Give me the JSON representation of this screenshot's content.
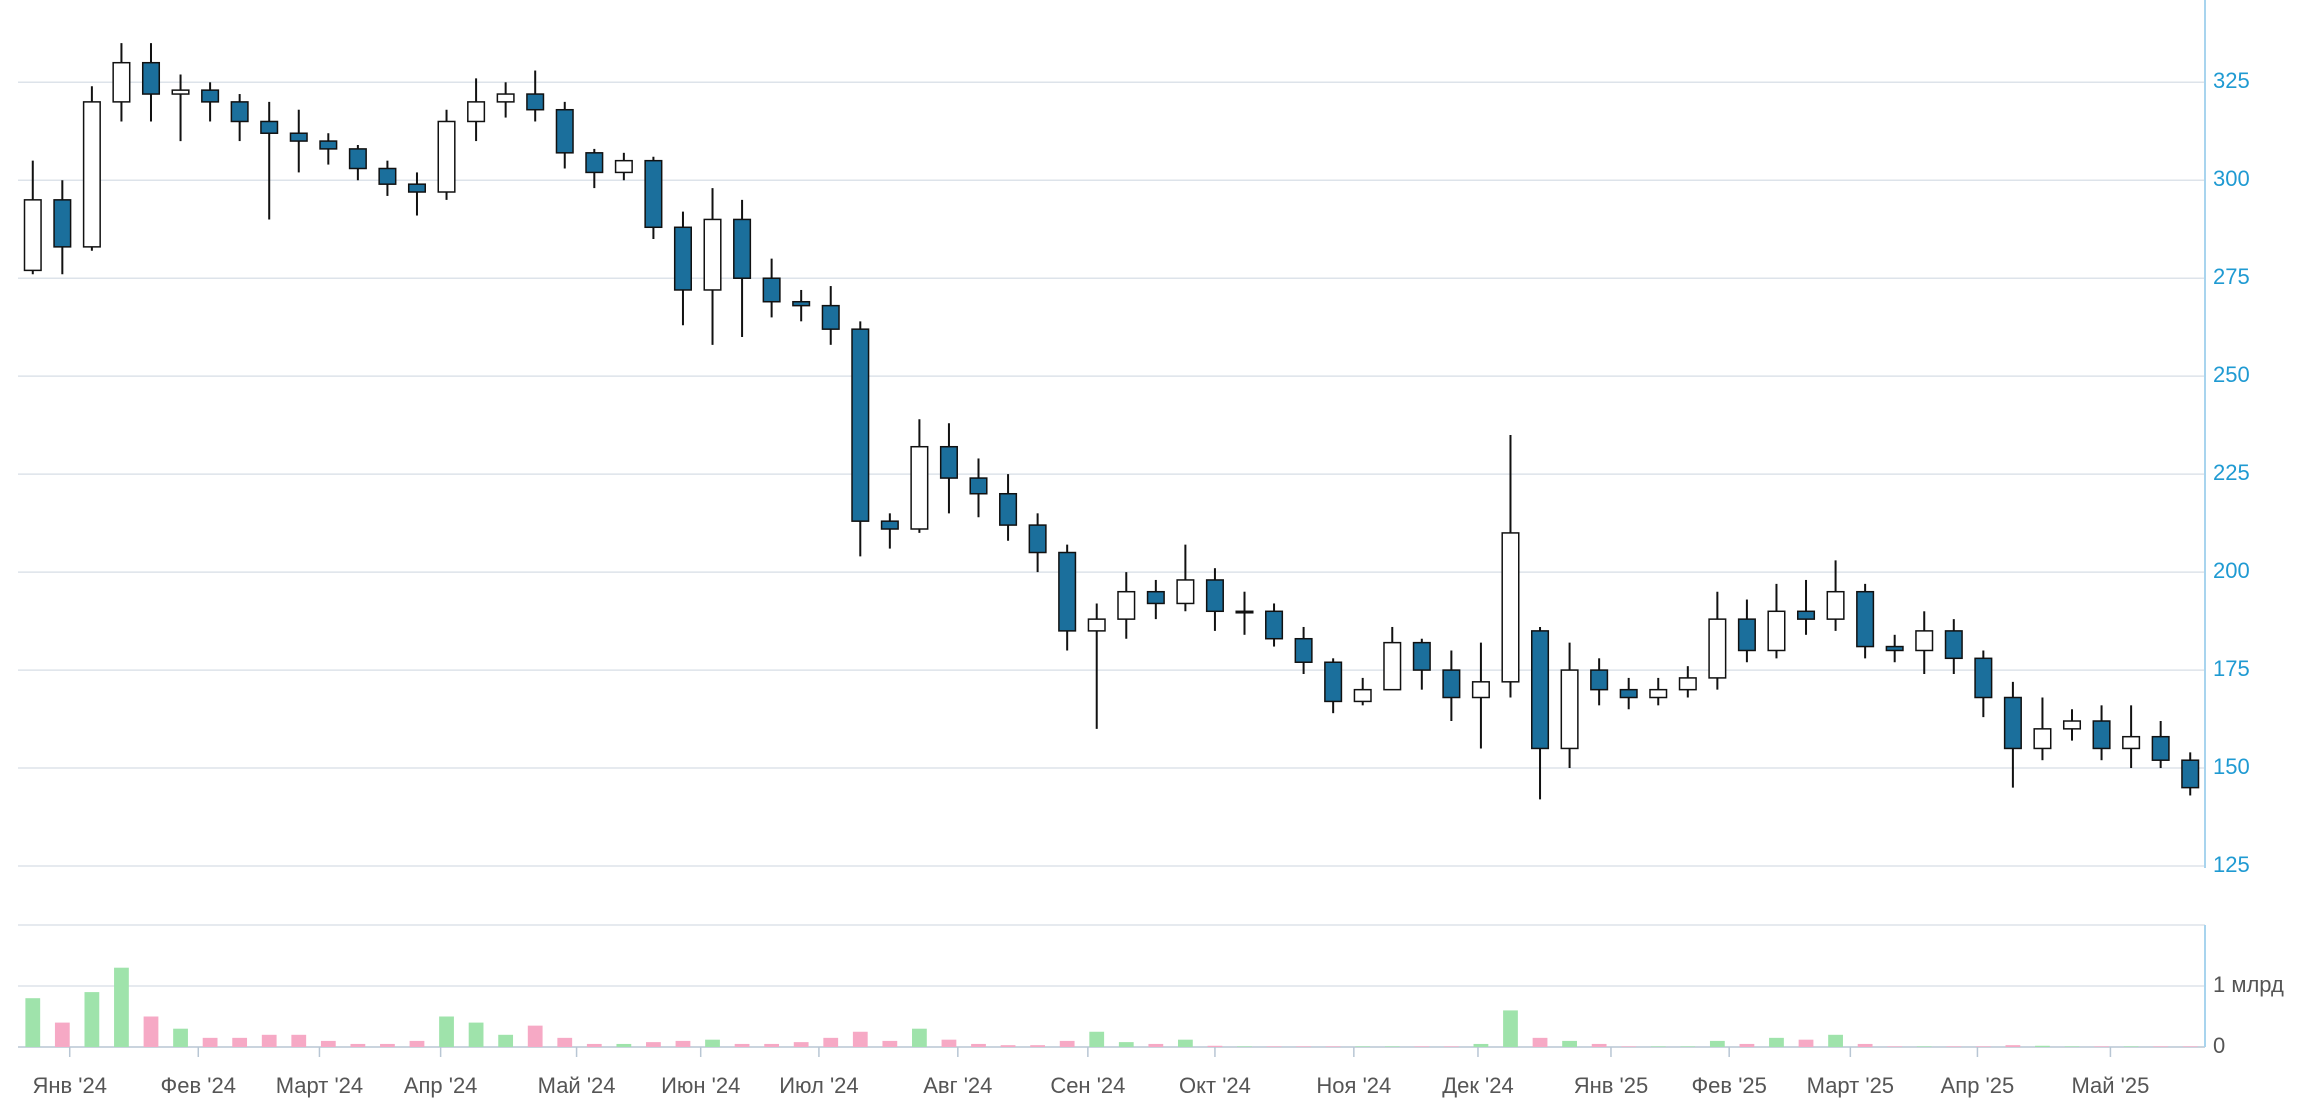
{
  "chart_data": {
    "type": "candlestick",
    "open": [
      277,
      295,
      283,
      320,
      330,
      322,
      323,
      320,
      315,
      312,
      310,
      308,
      303,
      299,
      297,
      315,
      320,
      322,
      318,
      307,
      302,
      305,
      288,
      272,
      290,
      275,
      269,
      268,
      262,
      213,
      211,
      232,
      224,
      220,
      212,
      205,
      185,
      188,
      195,
      192,
      198,
      190,
      190,
      183,
      177,
      167,
      170,
      182,
      175,
      168,
      172,
      185,
      155,
      175,
      170,
      168,
      170,
      173,
      188,
      180,
      190,
      188,
      195,
      181,
      180,
      185,
      178,
      168,
      155,
      160,
      162,
      155,
      158,
      152
    ],
    "high": [
      305,
      300,
      324,
      335,
      335,
      327,
      325,
      322,
      320,
      318,
      312,
      309,
      305,
      302,
      318,
      326,
      325,
      328,
      320,
      308,
      307,
      306,
      292,
      298,
      295,
      280,
      272,
      273,
      264,
      215,
      239,
      238,
      229,
      225,
      215,
      207,
      192,
      200,
      198,
      207,
      201,
      195,
      192,
      186,
      178,
      173,
      186,
      183,
      180,
      182,
      235,
      186,
      182,
      178,
      173,
      173,
      176,
      195,
      193,
      197,
      198,
      203,
      197,
      184,
      190,
      188,
      180,
      172,
      168,
      165,
      166,
      166,
      162,
      154
    ],
    "low": [
      276,
      276,
      282,
      315,
      315,
      310,
      315,
      310,
      290,
      302,
      304,
      300,
      296,
      291,
      295,
      310,
      316,
      315,
      303,
      298,
      300,
      285,
      263,
      258,
      260,
      265,
      264,
      258,
      204,
      206,
      210,
      215,
      214,
      208,
      200,
      180,
      160,
      183,
      188,
      190,
      185,
      184,
      181,
      174,
      164,
      166,
      170,
      170,
      162,
      155,
      168,
      142,
      150,
      166,
      165,
      166,
      168,
      170,
      177,
      178,
      184,
      185,
      178,
      177,
      174,
      174,
      163,
      145,
      152,
      157,
      152,
      150,
      150,
      143
    ],
    "close": [
      295,
      283,
      320,
      330,
      322,
      323,
      320,
      315,
      312,
      310,
      308,
      303,
      299,
      297,
      315,
      320,
      322,
      318,
      307,
      302,
      305,
      288,
      272,
      290,
      275,
      269,
      268,
      262,
      213,
      211,
      232,
      224,
      220,
      212,
      205,
      185,
      188,
      195,
      192,
      198,
      190,
      190,
      183,
      177,
      167,
      170,
      182,
      175,
      168,
      172,
      210,
      155,
      175,
      170,
      168,
      170,
      173,
      188,
      180,
      190,
      188,
      195,
      181,
      180,
      185,
      178,
      168,
      155,
      160,
      162,
      155,
      158,
      152,
      145
    ],
    "volume": [
      800000000,
      400000000,
      900000000,
      1300000000,
      500000000,
      300000000,
      150000000,
      150000000,
      200000000,
      200000000,
      100000000,
      50000000,
      50000000,
      100000000,
      500000000,
      400000000,
      200000000,
      350000000,
      150000000,
      50000000,
      50000000,
      80000000,
      100000000,
      120000000,
      50000000,
      50000000,
      80000000,
      150000000,
      250000000,
      100000000,
      300000000,
      120000000,
      50000000,
      30000000,
      30000000,
      100000000,
      250000000,
      80000000,
      50000000,
      120000000,
      20000000,
      10000000,
      10000000,
      10000000,
      10000000,
      10000000,
      10000000,
      10000000,
      10000000,
      50000000,
      600000000,
      150000000,
      100000000,
      50000000,
      10000000,
      10000000,
      10000000,
      100000000,
      50000000,
      150000000,
      120000000,
      200000000,
      50000000,
      10000000,
      10000000,
      10000000,
      10000000,
      30000000,
      20000000,
      10000000,
      10000000,
      10000000,
      10000000,
      10000000
    ],
    "xlim": [
      0,
      74
    ],
    "xticks": [
      {
        "value": 1.75,
        "label": "Янв '24"
      },
      {
        "value": 6.1,
        "label": "Фев '24"
      },
      {
        "value": 10.2,
        "label": "Март '24"
      },
      {
        "value": 14.3,
        "label": "Апр '24"
      },
      {
        "value": 18.9,
        "label": "Май '24"
      },
      {
        "value": 23.1,
        "label": "Июн '24"
      },
      {
        "value": 27.1,
        "label": "Июл '24"
      },
      {
        "value": 31.8,
        "label": "Авг '24"
      },
      {
        "value": 36.2,
        "label": "Сен '24"
      },
      {
        "value": 40.5,
        "label": "Окт '24"
      },
      {
        "value": 45.2,
        "label": "Ноя '24"
      },
      {
        "value": 49.4,
        "label": "Дек '24"
      },
      {
        "value": 53.9,
        "label": "Янв '25"
      },
      {
        "value": 57.9,
        "label": "Фев '25"
      },
      {
        "value": 62,
        "label": "Март '25"
      },
      {
        "value": 66.3,
        "label": "Апр '25"
      },
      {
        "value": 70.8,
        "label": "Май '25"
      }
    ],
    "ylim": [
      125,
      346
    ],
    "yticks": [
      125,
      150,
      175,
      200,
      225,
      250,
      275,
      300,
      325
    ],
    "volume_ylim": [
      0,
      2000000000
    ],
    "volume_yticks": [
      0,
      {
        "value": 1000000000,
        "label": "1 млрд"
      }
    ],
    "up_color": "#ffffff",
    "down_color": "#1b6f9c",
    "volume_up_color": "#9fe3ab",
    "volume_down_color": "#f6a9c5",
    "grid": true
  }
}
